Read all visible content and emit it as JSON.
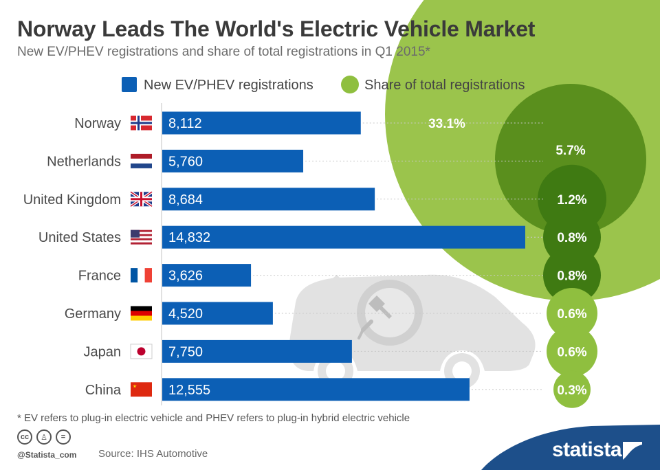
{
  "title": "Norway Leads The World's Electric Vehicle Market",
  "subtitle": "New EV/PHEV registrations and share of total registrations in Q1 2015*",
  "footnote": "* EV refers to plug-in electric vehicle  and PHEV refers to plug-in hybrid electric vehicle",
  "source": "Source: IHS Automotive",
  "handle": "@Statista_com",
  "brand": "statista",
  "colors": {
    "bar": "#0c5fb5",
    "bubble": "#8fbf3f",
    "bubble_inner": "#5a8f1d",
    "bubble_dark": "#3f7a12",
    "car": "#e2e2e2",
    "footer": "#1d4f8a"
  },
  "icons": [
    "norway-flag-icon",
    "netherlands-flag-icon",
    "uk-flag-icon",
    "us-flag-icon",
    "france-flag-icon",
    "germany-flag-icon",
    "japan-flag-icon",
    "china-flag-icon",
    "ev-car-icon",
    "plug-icon",
    "cc-icon",
    "by-icon",
    "nd-icon",
    "statista-logo-icon"
  ],
  "chart_data": {
    "type": "bar",
    "orientation": "horizontal",
    "categories": [
      "Norway",
      "Netherlands",
      "United Kingdom",
      "United States",
      "France",
      "Germany",
      "Japan",
      "China"
    ],
    "series": [
      {
        "name": "New EV/PHEV registrations",
        "values": [
          8112,
          5760,
          8684,
          14832,
          3626,
          4520,
          7750,
          12555
        ],
        "labels": [
          "8,112",
          "5,760",
          "8,684",
          "14,832",
          "3,626",
          "4,520",
          "7,750",
          "12,555"
        ]
      },
      {
        "name": "Share of total registrations",
        "values": [
          33.1,
          5.7,
          1.2,
          0.8,
          0.8,
          0.6,
          0.6,
          0.3
        ],
        "labels": [
          "33.1%",
          "5.7%",
          "1.2%",
          "0.8%",
          "0.8%",
          "0.6%",
          "0.6%",
          "0.3%"
        ],
        "encoding": "bubble-area"
      }
    ],
    "legend": {
      "position": "top"
    }
  }
}
